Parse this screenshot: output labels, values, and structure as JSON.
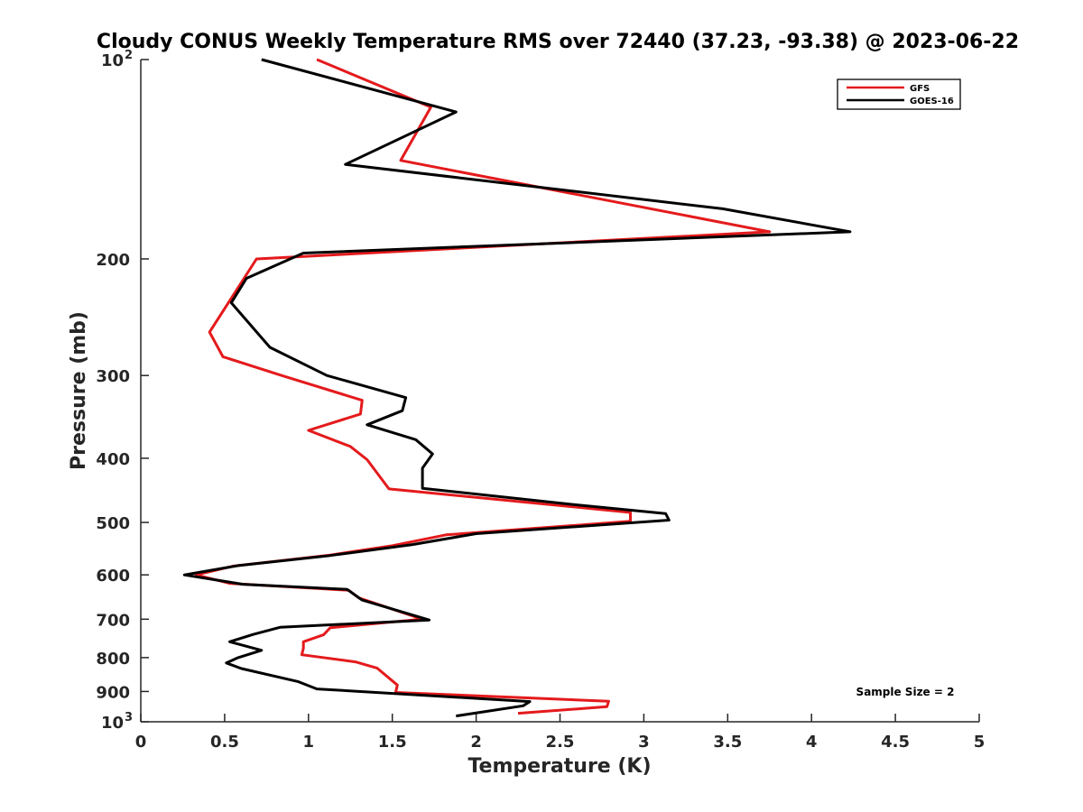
{
  "chart_data": {
    "type": "line",
    "title": "Cloudy CONUS Weekly Temperature RMS over 72440 (37.23, -93.38) @ 2023-06-22",
    "xlabel": "Temperature (K)",
    "ylabel": "Pressure (mb)",
    "xlim": [
      0,
      5
    ],
    "ylim": [
      100,
      1000
    ],
    "y_scale": "log",
    "y_reversed": true,
    "grid": false,
    "legend_position": "top-right",
    "x_ticks": [
      "0",
      "0.5",
      "1",
      "1.5",
      "2",
      "2.5",
      "3",
      "3.5",
      "4",
      "4.5",
      "5"
    ],
    "y_ticks": [
      {
        "value": 100,
        "base": "10",
        "exp": "2"
      },
      {
        "value": 200,
        "base": "200",
        "exp": ""
      },
      {
        "value": 300,
        "base": "300",
        "exp": ""
      },
      {
        "value": 400,
        "base": "400",
        "exp": ""
      },
      {
        "value": 500,
        "base": "500",
        "exp": ""
      },
      {
        "value": 600,
        "base": "600",
        "exp": ""
      },
      {
        "value": 700,
        "base": "700",
        "exp": ""
      },
      {
        "value": 800,
        "base": "800",
        "exp": ""
      },
      {
        "value": 900,
        "base": "900",
        "exp": ""
      },
      {
        "value": 1000,
        "base": "10",
        "exp": "3"
      }
    ],
    "annotation": "Sample Size = 2",
    "series": [
      {
        "name": "GFS",
        "color": "#e41a1c",
        "points": [
          [
            1.05,
            100
          ],
          [
            1.73,
            118
          ],
          [
            1.55,
            142
          ],
          [
            3.75,
            182
          ],
          [
            0.69,
            200
          ],
          [
            0.41,
            258
          ],
          [
            0.49,
            281
          ],
          [
            0.84,
            300
          ],
          [
            1.32,
            327
          ],
          [
            1.31,
            343
          ],
          [
            1.0,
            363
          ],
          [
            1.25,
            384
          ],
          [
            1.35,
            402
          ],
          [
            1.48,
            445
          ],
          [
            2.92,
            483
          ],
          [
            2.92,
            498
          ],
          [
            1.82,
            522
          ],
          [
            1.5,
            542
          ],
          [
            1.13,
            560
          ],
          [
            0.55,
            582
          ],
          [
            0.33,
            600
          ],
          [
            0.53,
            618
          ],
          [
            1.24,
            633
          ],
          [
            1.3,
            650
          ],
          [
            1.68,
            700
          ],
          [
            1.13,
            721
          ],
          [
            1.09,
            739
          ],
          [
            0.97,
            757
          ],
          [
            0.97,
            774
          ],
          [
            0.96,
            792
          ],
          [
            1.28,
            812
          ],
          [
            1.41,
            830
          ],
          [
            1.53,
            880
          ],
          [
            1.52,
            903
          ],
          [
            2.79,
            931
          ],
          [
            2.78,
            949
          ],
          [
            2.25,
            971
          ]
        ]
      },
      {
        "name": "GOES-16",
        "color": "#000000",
        "points": [
          [
            0.72,
            100
          ],
          [
            1.88,
            120
          ],
          [
            1.22,
            144
          ],
          [
            3.47,
            168
          ],
          [
            4.23,
            182
          ],
          [
            0.97,
            196
          ],
          [
            0.63,
            214
          ],
          [
            0.54,
            233
          ],
          [
            0.77,
            272
          ],
          [
            1.11,
            300
          ],
          [
            1.58,
            324
          ],
          [
            1.56,
            339
          ],
          [
            1.35,
            356
          ],
          [
            1.64,
            375
          ],
          [
            1.74,
            394
          ],
          [
            1.68,
            414
          ],
          [
            1.68,
            444
          ],
          [
            2.58,
            470
          ],
          [
            3.13,
            485
          ],
          [
            3.15,
            496
          ],
          [
            2.0,
            520
          ],
          [
            1.62,
            540
          ],
          [
            1.13,
            561
          ],
          [
            0.58,
            581
          ],
          [
            0.26,
            600
          ],
          [
            0.61,
            620
          ],
          [
            1.23,
            631
          ],
          [
            1.32,
            655
          ],
          [
            1.72,
            702
          ],
          [
            0.83,
            720
          ],
          [
            0.67,
            738
          ],
          [
            0.53,
            757
          ],
          [
            0.72,
            780
          ],
          [
            0.58,
            800
          ],
          [
            0.51,
            815
          ],
          [
            0.6,
            831
          ],
          [
            0.94,
            870
          ],
          [
            1.05,
            892
          ],
          [
            2.32,
            932
          ],
          [
            2.28,
            946
          ],
          [
            1.88,
            980
          ]
        ]
      }
    ]
  }
}
